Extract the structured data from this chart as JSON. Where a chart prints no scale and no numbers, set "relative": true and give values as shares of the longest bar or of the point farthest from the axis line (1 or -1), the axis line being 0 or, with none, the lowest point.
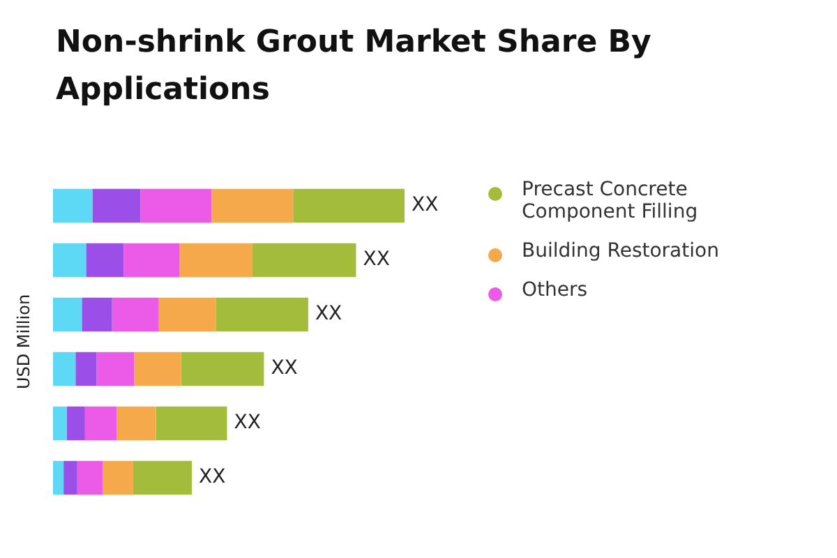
{
  "chart_data": {
    "type": "bar",
    "orientation": "horizontal",
    "stacked": true,
    "relative": true,
    "title": "Non-shrink Grout Market Share By Applications",
    "ylabel": "USD Million",
    "legend": "right",
    "categories": [
      null,
      null,
      null,
      null,
      null,
      null
    ],
    "series": [
      {
        "color": "#5dd9f5",
        "values": [
          0.112,
          0.094,
          0.082,
          0.064,
          0.039,
          0.03
        ]
      },
      {
        "color": "#9b4ee8",
        "values": [
          0.137,
          0.107,
          0.086,
          0.06,
          0.052,
          0.039
        ]
      },
      {
        "name": "Others",
        "color": "#ec5ae8",
        "values": [
          0.202,
          0.159,
          0.133,
          0.107,
          0.09,
          0.073
        ]
      },
      {
        "name": "Building Restoration",
        "color": "#f5a94b",
        "values": [
          0.232,
          0.206,
          0.163,
          0.133,
          0.112,
          0.086
        ]
      },
      {
        "name": "Precast Concrete Component Filling",
        "color": "#a4bc3c",
        "values": [
          0.317,
          0.296,
          0.262,
          0.236,
          0.202,
          0.167
        ]
      }
    ],
    "totals": [
      "XX",
      "XX",
      "XX",
      "XX",
      "XX",
      "XX"
    ]
  }
}
